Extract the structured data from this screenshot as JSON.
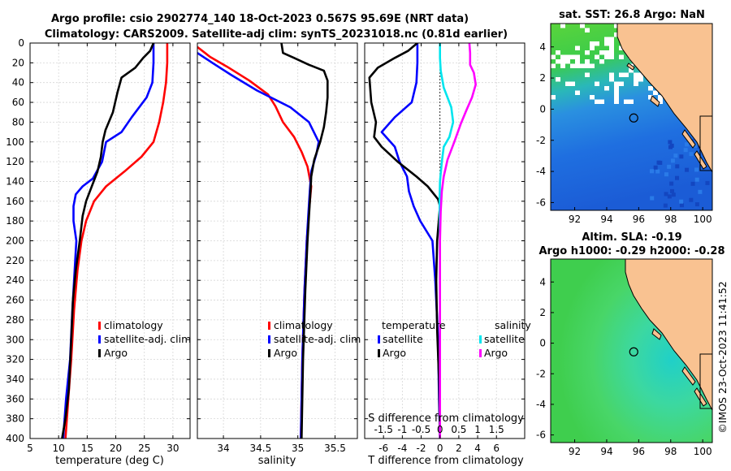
{
  "header": {
    "title_line1": "Argo profile: csio 2902774_140 18-Oct-2023 0.567S 95.69E (NRT data)",
    "title_line2": "Climatology: CARS2009. Satellite-adj clim: synTS_20231018.nc (0.81d earlier)",
    "timestamp": "©IMOS 23-Oct-2023 11:41:52"
  },
  "colors": {
    "climatology": "#ff0000",
    "satellite": "#0000ff",
    "argo": "#000000",
    "sal_satellite": "#00e5ee",
    "sal_argo": "#ff00ff",
    "land": "#f9c291"
  },
  "chart_data": [
    {
      "id": "temperature",
      "type": "line",
      "xlabel": "temperature (deg C)",
      "ylabel": "",
      "xlim": [
        5,
        33
      ],
      "ylim": [
        400,
        0
      ],
      "xticks": [
        5,
        10,
        15,
        20,
        25,
        30
      ],
      "yticks": [
        0,
        20,
        40,
        60,
        80,
        100,
        120,
        140,
        160,
        180,
        200,
        220,
        240,
        260,
        280,
        300,
        320,
        340,
        360,
        380,
        400
      ],
      "grid": true,
      "legend": {
        "position": "right-middle",
        "entries": [
          "climatology",
          "satellite-adj. clim",
          "Argo"
        ]
      },
      "series": [
        {
          "name": "climatology",
          "color": "#ff0000",
          "points": [
            [
              29.0,
              0
            ],
            [
              29.0,
              20
            ],
            [
              28.8,
              40
            ],
            [
              28.3,
              60
            ],
            [
              27.6,
              80
            ],
            [
              26.6,
              100
            ],
            [
              24.5,
              115
            ],
            [
              21.5,
              130
            ],
            [
              18.3,
              145
            ],
            [
              16.2,
              160
            ],
            [
              14.8,
              180
            ],
            [
              14.0,
              200
            ],
            [
              13.3,
              230
            ],
            [
              12.7,
              270
            ],
            [
              12.2,
              320
            ],
            [
              11.7,
              360
            ],
            [
              11.2,
              400
            ]
          ]
        },
        {
          "name": "satellite-adj. clim",
          "color": "#0000ff",
          "points": [
            [
              26.6,
              0
            ],
            [
              26.6,
              20
            ],
            [
              26.4,
              40
            ],
            [
              25.4,
              55
            ],
            [
              22.8,
              75
            ],
            [
              21.0,
              90
            ],
            [
              18.3,
              100
            ],
            [
              17.6,
              120
            ],
            [
              16.0,
              137
            ],
            [
              14.2,
              145
            ],
            [
              13.0,
              153
            ],
            [
              12.6,
              165
            ],
            [
              12.6,
              180
            ],
            [
              13.1,
              200
            ],
            [
              12.8,
              230
            ],
            [
              12.4,
              270
            ],
            [
              12.0,
              320
            ],
            [
              11.3,
              360
            ],
            [
              10.8,
              400
            ]
          ]
        },
        {
          "name": "Argo",
          "color": "#000000",
          "points": [
            [
              26.6,
              0
            ],
            [
              26.0,
              8
            ],
            [
              24.8,
              15
            ],
            [
              23.4,
              25
            ],
            [
              21.0,
              35
            ],
            [
              20.3,
              50
            ],
            [
              19.5,
              70
            ],
            [
              18.2,
              88
            ],
            [
              17.7,
              100
            ],
            [
              17.4,
              115
            ],
            [
              16.8,
              130
            ],
            [
              15.8,
              145
            ],
            [
              14.8,
              160
            ],
            [
              14.2,
              175
            ],
            [
              13.7,
              200
            ],
            [
              13.0,
              230
            ],
            [
              12.5,
              260
            ],
            [
              12.2,
              300
            ],
            [
              11.8,
              350
            ],
            [
              11.2,
              380
            ],
            [
              10.6,
              400
            ]
          ]
        }
      ]
    },
    {
      "id": "salinity",
      "type": "line",
      "xlabel": "salinity",
      "xlim": [
        33.65,
        35.8
      ],
      "ylim": [
        400,
        0
      ],
      "xticks": [
        34,
        34.5,
        35,
        35.5
      ],
      "grid": true,
      "legend": {
        "position": "right-middle",
        "entries": [
          "climatology",
          "satellite-adj. clim",
          "Argo"
        ]
      },
      "series": [
        {
          "name": "climatology",
          "color": "#ff0000",
          "points": [
            [
              33.65,
              4
            ],
            [
              33.82,
              14
            ],
            [
              34.05,
              24
            ],
            [
              34.35,
              38
            ],
            [
              34.6,
              52
            ],
            [
              34.7,
              64
            ],
            [
              34.8,
              80
            ],
            [
              34.95,
              95
            ],
            [
              35.05,
              110
            ],
            [
              35.13,
              125
            ],
            [
              35.18,
              145
            ],
            [
              35.15,
              170
            ],
            [
              35.12,
              200
            ],
            [
              35.09,
              250
            ],
            [
              35.06,
              320
            ],
            [
              35.04,
              400
            ]
          ]
        },
        {
          "name": "satellite-adj. clim",
          "color": "#0000ff",
          "points": [
            [
              33.65,
              10
            ],
            [
              33.85,
              20
            ],
            [
              34.1,
              32
            ],
            [
              34.45,
              48
            ],
            [
              34.9,
              65
            ],
            [
              35.15,
              80
            ],
            [
              35.28,
              100
            ],
            [
              35.25,
              112
            ],
            [
              35.18,
              130
            ],
            [
              35.16,
              150
            ],
            [
              35.14,
              175
            ],
            [
              35.12,
              200
            ],
            [
              35.09,
              250
            ],
            [
              35.06,
              320
            ],
            [
              35.04,
              400
            ]
          ]
        },
        {
          "name": "Argo",
          "color": "#000000",
          "points": [
            [
              34.78,
              0
            ],
            [
              34.8,
              10
            ],
            [
              34.95,
              15
            ],
            [
              35.15,
              22
            ],
            [
              35.35,
              28
            ],
            [
              35.4,
              38
            ],
            [
              35.4,
              55
            ],
            [
              35.38,
              70
            ],
            [
              35.35,
              85
            ],
            [
              35.3,
              100
            ],
            [
              35.22,
              118
            ],
            [
              35.18,
              135
            ],
            [
              35.17,
              150
            ],
            [
              35.15,
              175
            ],
            [
              35.13,
              200
            ],
            [
              35.1,
              250
            ],
            [
              35.07,
              320
            ],
            [
              35.05,
              400
            ]
          ]
        }
      ]
    },
    {
      "id": "difference",
      "type": "line",
      "xlabel": "T difference from climatology",
      "xlabel2": "S difference from climatology",
      "xlim": [
        -8,
        9
      ],
      "ylim": [
        400,
        0
      ],
      "xticks": [
        -6,
        -4,
        -2,
        0,
        2,
        4,
        6
      ],
      "s_ticks": [
        -1.5,
        -1,
        -0.5,
        0,
        0.5,
        1,
        1.5
      ],
      "grid": true,
      "legend": {
        "position": "right-middle",
        "temperature_header": "temperature",
        "salinity_header": "salinity",
        "entries": [
          "satellite",
          "Argo",
          "satellite",
          "Argo"
        ]
      },
      "series": [
        {
          "name": "temperature satellite",
          "color": "#0000ff",
          "points": [
            [
              -2.4,
              0
            ],
            [
              -2.4,
              20
            ],
            [
              -2.5,
              40
            ],
            [
              -3.0,
              60
            ],
            [
              -4.8,
              75
            ],
            [
              -6.2,
              90
            ],
            [
              -4.8,
              105
            ],
            [
              -4.3,
              120
            ],
            [
              -3.5,
              135
            ],
            [
              -3.3,
              150
            ],
            [
              -2.8,
              165
            ],
            [
              -2.1,
              180
            ],
            [
              -0.8,
              200
            ],
            [
              -0.5,
              240
            ],
            [
              -0.2,
              300
            ],
            [
              -0.1,
              360
            ],
            [
              0,
              400
            ]
          ]
        },
        {
          "name": "temperature Argo",
          "color": "#000000",
          "points": [
            [
              -2.4,
              0
            ],
            [
              -3.4,
              8
            ],
            [
              -4.8,
              15
            ],
            [
              -6.6,
              25
            ],
            [
              -7.5,
              35
            ],
            [
              -7.3,
              60
            ],
            [
              -6.8,
              80
            ],
            [
              -7.0,
              95
            ],
            [
              -6.2,
              105
            ],
            [
              -4.5,
              120
            ],
            [
              -2.5,
              135
            ],
            [
              -1.3,
              145
            ],
            [
              -0.2,
              158
            ],
            [
              0,
              165
            ],
            [
              -0.3,
              200
            ],
            [
              -0.4,
              240
            ],
            [
              -0.3,
              290
            ],
            [
              -0.1,
              340
            ],
            [
              0,
              400
            ]
          ]
        },
        {
          "name": "salinity satellite",
          "color": "#00e5ee",
          "units": "S",
          "points": [
            [
              0.0,
              0
            ],
            [
              0.0,
              15
            ],
            [
              0.02,
              28
            ],
            [
              0.1,
              45
            ],
            [
              0.3,
              65
            ],
            [
              0.35,
              80
            ],
            [
              0.25,
              95
            ],
            [
              0.1,
              105
            ],
            [
              0.05,
              120
            ],
            [
              0.0,
              140
            ],
            [
              -0.01,
              160
            ],
            [
              0.0,
              200
            ],
            [
              0.0,
              300
            ],
            [
              0.0,
              400
            ]
          ]
        },
        {
          "name": "salinity Argo",
          "color": "#ff00ff",
          "units": "S",
          "points": [
            [
              0.78,
              0
            ],
            [
              0.8,
              10
            ],
            [
              0.8,
              22
            ],
            [
              0.9,
              30
            ],
            [
              0.95,
              42
            ],
            [
              0.85,
              55
            ],
            [
              0.7,
              68
            ],
            [
              0.55,
              82
            ],
            [
              0.38,
              100
            ],
            [
              0.2,
              118
            ],
            [
              0.1,
              135
            ],
            [
              0.05,
              150
            ],
            [
              0.02,
              170
            ],
            [
              0.0,
              200
            ],
            [
              0.0,
              300
            ],
            [
              0.0,
              400
            ]
          ]
        }
      ]
    },
    {
      "id": "sst_map",
      "type": "heatmap",
      "title": "sat. SST: 26.8 Argo: NaN",
      "xlim": [
        90.5,
        100.6
      ],
      "ylim": [
        -6.5,
        5.5
      ],
      "xticks": [
        92,
        94,
        96,
        98,
        100
      ],
      "yticks": [
        -6,
        -4,
        -2,
        0,
        2,
        4
      ],
      "marker": [
        95.69,
        -0.567
      ]
    },
    {
      "id": "sla_map",
      "type": "heatmap",
      "title_line1": "Altim. SLA: -0.19",
      "title_line2": "Argo h1000: -0.29 h2000: -0.28",
      "xlim": [
        90.5,
        100.6
      ],
      "ylim": [
        -6.5,
        5.5
      ],
      "xticks": [
        92,
        94,
        96,
        98,
        100
      ],
      "yticks": [
        -6,
        -4,
        -2,
        0,
        2,
        4
      ],
      "marker": [
        95.69,
        -0.567
      ]
    }
  ]
}
